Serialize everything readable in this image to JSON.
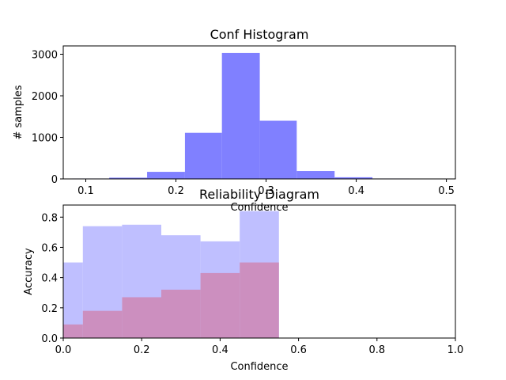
{
  "chart_data": [
    {
      "type": "bar",
      "title": "Conf Histogram",
      "xlabel": "Confidence",
      "ylabel": "# samples",
      "xlim": [
        0.075,
        0.51
      ],
      "ylim": [
        0,
        3200
      ],
      "xticks": [
        "0.1",
        "0.2",
        "0.3",
        "0.4",
        "0.5"
      ],
      "xtick_values": [
        0.1,
        0.2,
        0.3,
        0.4,
        0.5
      ],
      "yticks": [
        "0",
        "1000",
        "2000",
        "3000"
      ],
      "ytick_values": [
        0,
        1000,
        2000,
        3000
      ],
      "bins": [
        {
          "x0": 0.085,
          "x1": 0.126,
          "value": 10
        },
        {
          "x0": 0.126,
          "x1": 0.168,
          "value": 30
        },
        {
          "x0": 0.168,
          "x1": 0.21,
          "value": 170
        },
        {
          "x0": 0.21,
          "x1": 0.251,
          "value": 1110
        },
        {
          "x0": 0.251,
          "x1": 0.293,
          "value": 3030
        },
        {
          "x0": 0.293,
          "x1": 0.334,
          "value": 1400
        },
        {
          "x0": 0.334,
          "x1": 0.376,
          "value": 190
        },
        {
          "x0": 0.376,
          "x1": 0.418,
          "value": 40
        },
        {
          "x0": 0.418,
          "x1": 0.459,
          "value": 10
        },
        {
          "x0": 0.459,
          "x1": 0.5,
          "value": 5
        }
      ],
      "color": "#8080ff"
    },
    {
      "type": "bar",
      "title": "Reliability Diagram",
      "xlabel": "Confidence",
      "ylabel": "Accuracy",
      "xlim": [
        0,
        1.0
      ],
      "ylim": [
        0,
        0.88
      ],
      "xticks": [
        "0.0",
        "0.2",
        "0.4",
        "0.6",
        "0.8",
        "1.0"
      ],
      "xtick_values": [
        0,
        0.2,
        0.4,
        0.6,
        0.8,
        1.0
      ],
      "yticks": [
        "0.0",
        "0.2",
        "0.4",
        "0.6",
        "0.8"
      ],
      "ytick_values": [
        0,
        0.2,
        0.4,
        0.6,
        0.8
      ],
      "series": [
        {
          "values": [
            {
              "x0": 0.0,
              "x1": 0.05,
              "value": 0.5
            },
            {
              "x0": 0.05,
              "x1": 0.15,
              "value": 0.74
            },
            {
              "x0": 0.15,
              "x1": 0.25,
              "value": 0.75
            },
            {
              "x0": 0.25,
              "x1": 0.35,
              "value": 0.68
            },
            {
              "x0": 0.35,
              "x1": 0.45,
              "value": 0.64
            },
            {
              "x0": 0.45,
              "x1": 0.55,
              "value": 0.84
            }
          ],
          "color": "#bfbfff"
        },
        {
          "values": [
            {
              "x0": 0.0,
              "x1": 0.05,
              "value": 0.09
            },
            {
              "x0": 0.05,
              "x1": 0.15,
              "value": 0.18
            },
            {
              "x0": 0.15,
              "x1": 0.25,
              "value": 0.27
            },
            {
              "x0": 0.25,
              "x1": 0.35,
              "value": 0.32
            },
            {
              "x0": 0.35,
              "x1": 0.45,
              "value": 0.43
            },
            {
              "x0": 0.45,
              "x1": 0.55,
              "value": 0.5
            }
          ],
          "color": "#cc8fbf"
        }
      ]
    }
  ]
}
